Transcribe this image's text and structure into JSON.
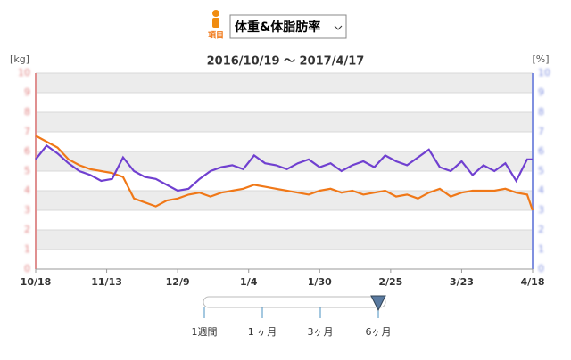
{
  "header": {
    "item_label": "項目",
    "selector": "体重&体脂肪率"
  },
  "chart_data": {
    "type": "line",
    "title": "2016/10/19 ～ 2017/4/17",
    "y_label": "[kg]",
    "y2_label": "[%]",
    "x": [
      0,
      4,
      8,
      12,
      16,
      20,
      24,
      28,
      32,
      36,
      40,
      44,
      48,
      52,
      56,
      60,
      64,
      68,
      72,
      76,
      80,
      84,
      88,
      92,
      96,
      100,
      104,
      108,
      112,
      116,
      120,
      124,
      128,
      132,
      136,
      140,
      144,
      148,
      152,
      156,
      160,
      164,
      168,
      172,
      176,
      180,
      182
    ],
    "series": [
      {
        "color": "#f07818",
        "values": [
          6.8,
          6.5,
          6.2,
          5.6,
          5.3,
          5.1,
          5.0,
          4.9,
          4.7,
          3.6,
          3.4,
          3.2,
          3.5,
          3.6,
          3.8,
          3.9,
          3.7,
          3.9,
          4.0,
          4.1,
          4.3,
          4.2,
          4.1,
          4.0,
          3.9,
          3.8,
          4.0,
          4.1,
          3.9,
          4.0,
          3.8,
          3.9,
          4.0,
          3.7,
          3.8,
          3.6,
          3.9,
          4.1,
          3.7,
          3.9,
          4.0,
          4.0,
          4.0,
          4.1,
          3.9,
          3.8,
          3.0
        ]
      },
      {
        "color": "#7040d0",
        "axis": "y2",
        "values": [
          5.6,
          6.3,
          5.9,
          5.4,
          5.0,
          4.8,
          4.5,
          4.6,
          5.7,
          5.0,
          4.7,
          4.6,
          4.3,
          4.0,
          4.1,
          4.6,
          5.0,
          5.2,
          5.3,
          5.1,
          5.8,
          5.4,
          5.3,
          5.1,
          5.4,
          5.6,
          5.2,
          5.4,
          5.0,
          5.3,
          5.5,
          5.2,
          5.8,
          5.5,
          5.3,
          5.7,
          6.1,
          5.2,
          5.0,
          5.5,
          4.8,
          5.3,
          5.0,
          5.4,
          4.5,
          5.6,
          5.6
        ]
      }
    ],
    "xlim": [
      0,
      182
    ],
    "xticks": [
      {
        "value": 0,
        "label": "10/18"
      },
      {
        "value": 26,
        "label": "11/13"
      },
      {
        "value": 52,
        "label": "12/9"
      },
      {
        "value": 78,
        "label": "1/4"
      },
      {
        "value": 104,
        "label": "1/30"
      },
      {
        "value": 130,
        "label": "2/25"
      },
      {
        "value": 156,
        "label": "3/23"
      },
      {
        "value": 182,
        "label": "4/18"
      }
    ],
    "ylim": [
      0,
      10
    ],
    "yticks": [
      0,
      1,
      2,
      3,
      4,
      5,
      6,
      7,
      8,
      9,
      10
    ],
    "y2lim": [
      0,
      10
    ],
    "y2ticks": [
      0,
      1,
      2,
      3,
      4,
      5,
      6,
      7,
      8,
      9,
      10
    ],
    "grid": true
  },
  "range_slider": {
    "options": [
      "1週間",
      "1 ヶ月",
      "3ヶ月",
      "6ヶ月"
    ],
    "selected": 3
  }
}
